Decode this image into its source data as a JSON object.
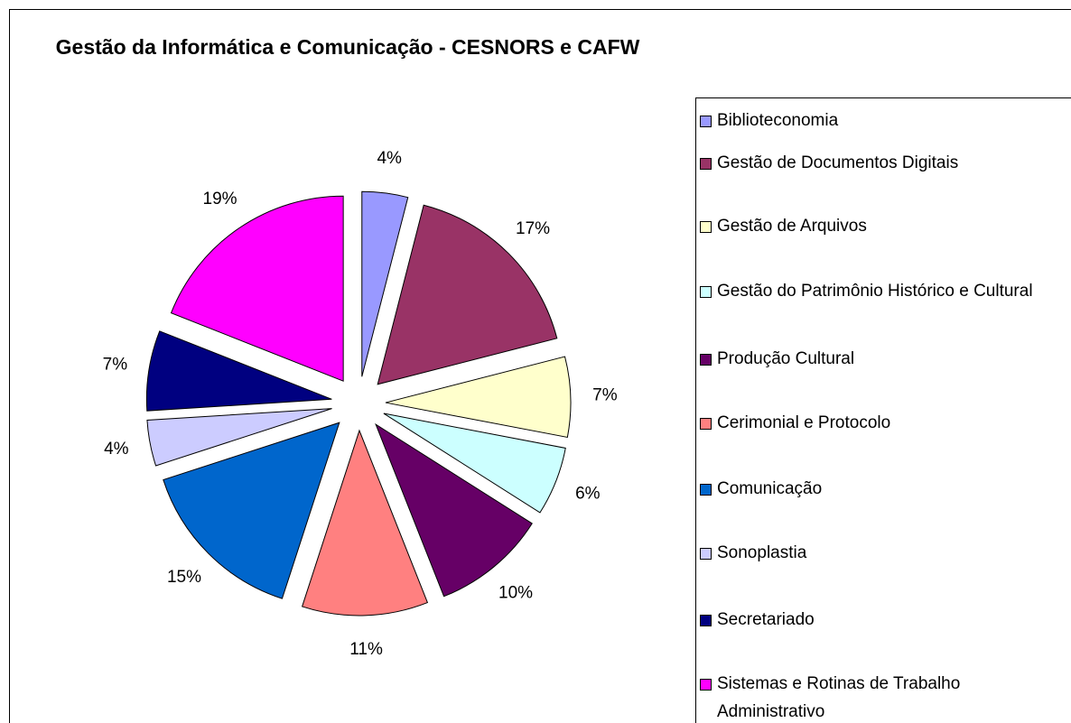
{
  "chart_data": {
    "type": "pie",
    "title": "Gestão da Informática e Comunicação - CESNORS e CAFW",
    "categories": [
      "Biblioteconomia",
      "Gestão de Documentos Digitais",
      "Gestão de Arquivos",
      "Gestão do Patrimônio Histórico e Cultural",
      "Produção Cultural",
      "Cerimonial e Protocolo",
      "Comunicação",
      "Sonoplastia",
      "Secretariado",
      "Sistemas e Rotinas de Trabalho Administrativo"
    ],
    "values": [
      4,
      17,
      7,
      6,
      10,
      11,
      15,
      4,
      7,
      19
    ],
    "value_labels": [
      "4%",
      "17%",
      "7%",
      "6%",
      "10%",
      "11%",
      "15%",
      "4%",
      "7%",
      "19%"
    ],
    "colors": [
      "#9999ff",
      "#993366",
      "#ffffcc",
      "#ccffff",
      "#660066",
      "#ff8080",
      "#0066cc",
      "#ccccff",
      "#000080",
      "#ff00ff"
    ],
    "legend": "right"
  }
}
